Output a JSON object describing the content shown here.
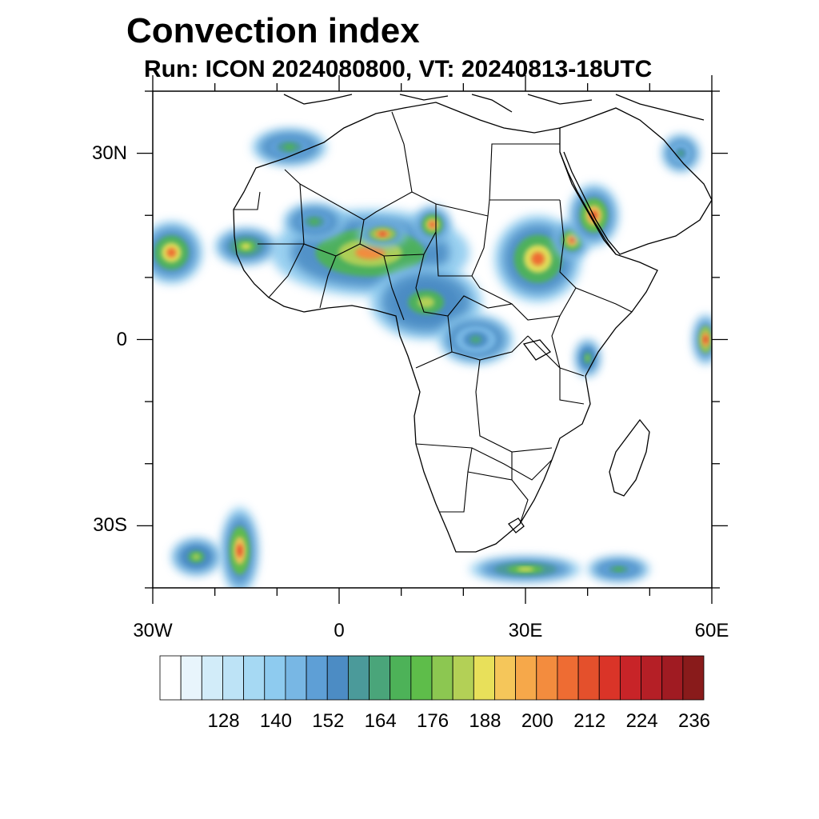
{
  "title": "Convection index",
  "subtitle": "Run: ICON 2024080800,  VT: 20240813-18UTC",
  "map": {
    "extent": {
      "lon_min": -30,
      "lon_max": 60,
      "lat_min": -40,
      "lat_max": 40
    },
    "lat_ticks": [
      {
        "value": 30,
        "label": "30N"
      },
      {
        "value": 0,
        "label": "0"
      },
      {
        "value": -30,
        "label": "30S"
      }
    ],
    "lon_ticks": [
      {
        "value": -30,
        "label": "30W"
      },
      {
        "value": 0,
        "label": "0"
      },
      {
        "value": 30,
        "label": "30E"
      },
      {
        "value": 60,
        "label": "60E"
      }
    ]
  },
  "colorbar": {
    "labels": [
      "128",
      "140",
      "152",
      "164",
      "176",
      "188",
      "200",
      "212",
      "224",
      "236"
    ],
    "colors": [
      "#ffffff",
      "#e8f5fc",
      "#d2ecf9",
      "#bde3f6",
      "#a6d9f3",
      "#8ecbef",
      "#78b7e4",
      "#5e9fd6",
      "#4c8cc4",
      "#4b9a9a",
      "#4aa57a",
      "#4db258",
      "#5ebd4a",
      "#8cc751",
      "#b3d056",
      "#e8e05a",
      "#f5c65a",
      "#f6a84a",
      "#f38c3e",
      "#ee6c33",
      "#e4502c",
      "#da3428",
      "#c82428",
      "#b51f26",
      "#a01b22",
      "#891b1b"
    ]
  },
  "regions": [
    {
      "name": "convection-west-africa-sahel",
      "lon": 5,
      "lat": 14,
      "w": 16,
      "h": 7,
      "intensity": 0.7
    },
    {
      "name": "convection-nigeria-niger",
      "lon": 7,
      "lat": 17,
      "w": 4,
      "h": 2,
      "intensity": 0.85
    },
    {
      "name": "convection-chad",
      "lon": 15,
      "lat": 18.5,
      "w": 3,
      "h": 3,
      "intensity": 0.8
    },
    {
      "name": "convection-senegal-coast",
      "lon": -27,
      "lat": 14,
      "w": 5,
      "h": 5,
      "intensity": 0.75
    },
    {
      "name": "convection-guinea",
      "lon": -15,
      "lat": 15,
      "w": 5,
      "h": 3,
      "intensity": 0.6
    },
    {
      "name": "convection-sudan-ethiopia",
      "lon": 32,
      "lat": 13,
      "w": 7,
      "h": 7,
      "intensity": 0.75
    },
    {
      "name": "convection-eritrea-highlands",
      "lon": 37.5,
      "lat": 16,
      "w": 3,
      "h": 3,
      "intensity": 0.8
    },
    {
      "name": "convection-red-sea-arabia",
      "lon": 41,
      "lat": 20,
      "w": 4,
      "h": 5,
      "intensity": 0.8
    },
    {
      "name": "convection-central-africa",
      "lon": 14,
      "lat": 6,
      "w": 9,
      "h": 6,
      "intensity": 0.55
    },
    {
      "name": "convection-congo",
      "lon": 22,
      "lat": 0,
      "w": 6,
      "h": 4,
      "intensity": 0.4
    },
    {
      "name": "convection-mauritania",
      "lon": -4,
      "lat": 19,
      "w": 5,
      "h": 3,
      "intensity": 0.45
    },
    {
      "name": "convection-morocco-atlantic",
      "lon": -8,
      "lat": 31,
      "w": 6,
      "h": 3,
      "intensity": 0.45
    },
    {
      "name": "convection-arabian-north",
      "lon": 55,
      "lat": 30,
      "w": 3,
      "h": 3,
      "intensity": 0.4
    },
    {
      "name": "convection-indian-ocean",
      "lon": 59,
      "lat": 0,
      "w": 2,
      "h": 4,
      "intensity": 0.85
    },
    {
      "name": "convection-south-atlantic-front",
      "lon": -16,
      "lat": -34,
      "w": 3,
      "h": 7,
      "intensity": 0.8
    },
    {
      "name": "convection-south-atlantic-west",
      "lon": -23,
      "lat": -35,
      "w": 4,
      "h": 3,
      "intensity": 0.55
    },
    {
      "name": "convection-south-of-africa",
      "lon": 30,
      "lat": -37,
      "w": 9,
      "h": 2,
      "intensity": 0.6
    },
    {
      "name": "convection-south-indian",
      "lon": 45,
      "lat": -37,
      "w": 5,
      "h": 2,
      "intensity": 0.45
    },
    {
      "name": "convection-east-africa-coast",
      "lon": 40,
      "lat": -3,
      "w": 2,
      "h": 3,
      "intensity": 0.5
    }
  ]
}
